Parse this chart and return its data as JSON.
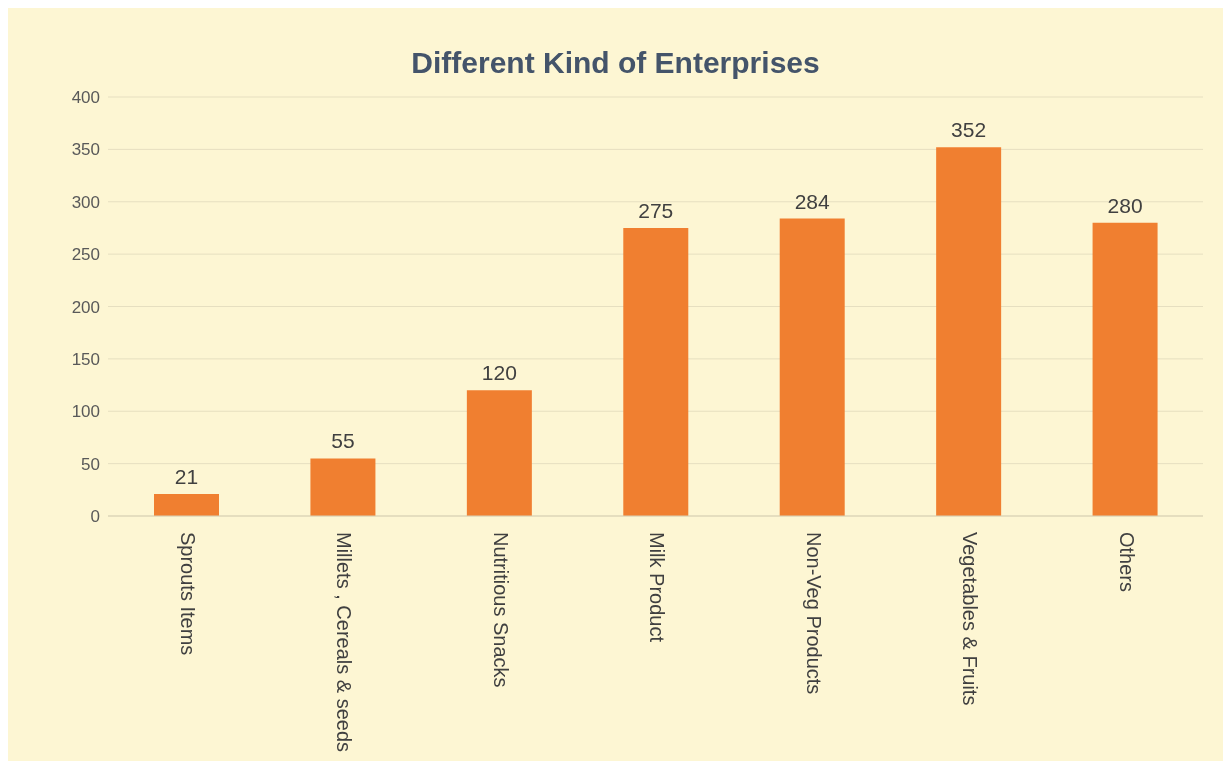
{
  "chart_data": {
    "type": "bar",
    "title": "Different Kind of Enterprises",
    "categories": [
      "Sprouts Items",
      "Millets , Cereals & seeds",
      "Nutritious Snacks",
      "Milk Product",
      "Non-Veg Products",
      "Vegetables & Fruits",
      "Others"
    ],
    "values": [
      21,
      55,
      120,
      275,
      284,
      352,
      280
    ],
    "color": "#f07f30",
    "ylim": [
      0,
      400
    ],
    "yticks": [
      0,
      50,
      100,
      150,
      200,
      250,
      300,
      350,
      400
    ],
    "grid": "y",
    "data_labels": true
  }
}
